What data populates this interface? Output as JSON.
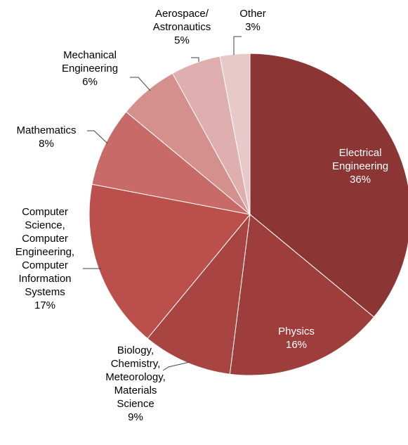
{
  "chart_data": {
    "type": "pie",
    "title": "",
    "slices": [
      {
        "label": "Electrical Engineering",
        "lines": [
          "Electrical",
          "Engineering",
          "36%"
        ],
        "percent_label": "36%",
        "value": 36,
        "color": "#8B3535"
      },
      {
        "label": "Physics",
        "lines": [
          "Physics",
          "16%"
        ],
        "percent_label": "16%",
        "value": 16,
        "color": "#9E3E3C"
      },
      {
        "label": "Biology, Chemistry, Meteorology, Materials Science",
        "lines": [
          "Biology,",
          "Chemistry,",
          "Meteorology,",
          "Materials",
          "Science",
          "9%"
        ],
        "percent_label": "9%",
        "value": 9,
        "color": "#A84442"
      },
      {
        "label": "Computer Science, Computer Engineering, Computer Information Systems",
        "lines": [
          "Computer",
          "Science,",
          "Computer",
          "Engineering,",
          "Computer",
          "Information",
          "Systems",
          "17%"
        ],
        "percent_label": "17%",
        "value": 17,
        "color": "#BA4F4B"
      },
      {
        "label": "Mathematics",
        "lines": [
          "Mathematics",
          "8%"
        ],
        "percent_label": "8%",
        "value": 8,
        "color": "#C86B68"
      },
      {
        "label": "Mechanical Engineering",
        "lines": [
          "Mechanical",
          "Engineering",
          "6%"
        ],
        "percent_label": "6%",
        "value": 6,
        "color": "#D4908D"
      },
      {
        "label": "Aerospace/ Astronautics",
        "lines": [
          "Aerospace/",
          "Astronautics",
          "5%"
        ],
        "percent_label": "5%",
        "value": 5,
        "color": "#DEAFAE"
      },
      {
        "label": "Other",
        "lines": [
          "Other",
          "3%"
        ],
        "percent_label": "3%",
        "value": 3,
        "color": "#E8C9C9"
      }
    ],
    "label_colors": {
      "inside": "#ffffff",
      "outside": "#000000"
    }
  }
}
